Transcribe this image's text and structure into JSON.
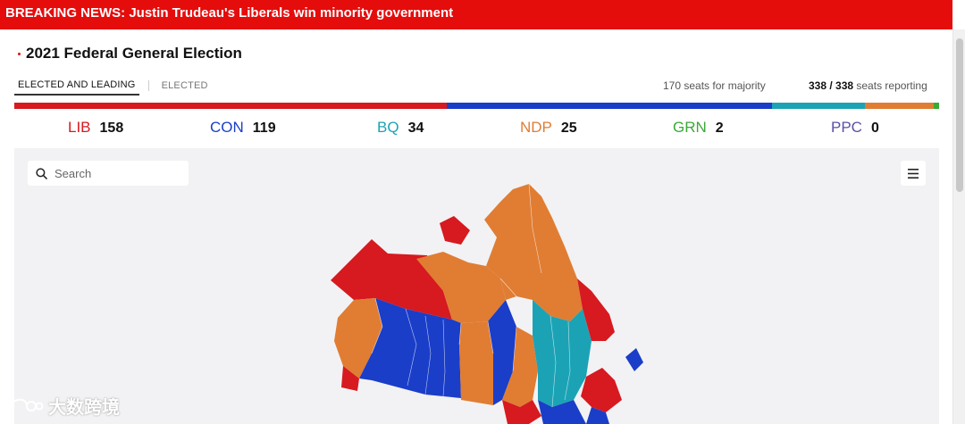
{
  "breaking": {
    "label": "BREAKING NEWS: Justin Trudeau's Liberals win minority government"
  },
  "election": {
    "title": "2021 Federal General Election"
  },
  "tabs": [
    {
      "label": "ELECTED AND LEADING",
      "active": true
    },
    {
      "label": "ELECTED",
      "active": false
    }
  ],
  "status": {
    "majority": "170 seats for majority",
    "reporting_count": "338 / 338",
    "reporting_label": " seats reporting"
  },
  "parties": [
    {
      "abbr": "LIB",
      "seats": "158",
      "color": "#d71920"
    },
    {
      "abbr": "CON",
      "seats": "119",
      "color": "#1a3ec8"
    },
    {
      "abbr": "BQ",
      "seats": "34",
      "color": "#1ba3b5"
    },
    {
      "abbr": "NDP",
      "seats": "25",
      "color": "#e07d33"
    },
    {
      "abbr": "GRN",
      "seats": "2",
      "color": "#3aaa35"
    },
    {
      "abbr": "PPC",
      "seats": "0",
      "color": "#5b4fa8"
    }
  ],
  "search": {
    "placeholder": "Search"
  },
  "icons": {
    "search": "search-icon",
    "menu": "hamburger-menu-icon",
    "map": "canada-riding-map"
  },
  "watermark": {
    "text": "大数跨境"
  }
}
